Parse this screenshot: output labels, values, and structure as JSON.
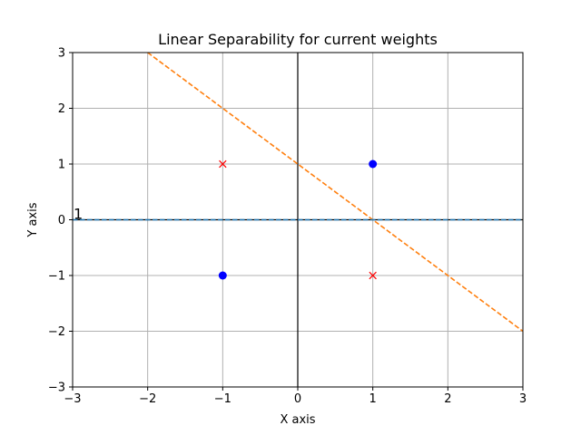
{
  "chart_data": {
    "type": "scatter",
    "title": "Linear Separability for current weights",
    "xlabel": "X axis",
    "ylabel": "Y axis",
    "xlim": [
      -3,
      3
    ],
    "ylim": [
      -3,
      3
    ],
    "xticks": [
      -3,
      -2,
      -1,
      0,
      1,
      2,
      3
    ],
    "yticks": [
      -3,
      -2,
      -1,
      0,
      1,
      2,
      3
    ],
    "tick_labels_x": [
      "−3",
      "−2",
      "−1",
      "0",
      "1",
      "2",
      "3"
    ],
    "tick_labels_y": [
      "−3",
      "−2",
      "−1",
      "0",
      "1",
      "2",
      "3"
    ],
    "grid": true,
    "series": [
      {
        "marker": "circle",
        "color": "#0000ff",
        "points": [
          [
            1,
            1
          ],
          [
            -1,
            -1
          ]
        ]
      },
      {
        "marker": "x",
        "color": "#ff0000",
        "points": [
          [
            -1,
            1
          ],
          [
            1,
            -1
          ]
        ]
      }
    ],
    "lines": [
      {
        "style": "dashed",
        "color": "#ff7f0e",
        "points": [
          [
            -2,
            3
          ],
          [
            3,
            -2
          ]
        ]
      },
      {
        "style": "dashed",
        "color": "#1f77b4",
        "points": [
          [
            -3,
            0
          ],
          [
            3,
            0
          ]
        ]
      }
    ],
    "annotations": [
      {
        "text": "1",
        "x": -3,
        "y": 0
      }
    ],
    "colors": {
      "axis_lines": "#000000",
      "grid": "#b0b0b0",
      "frame": "#000000"
    }
  }
}
